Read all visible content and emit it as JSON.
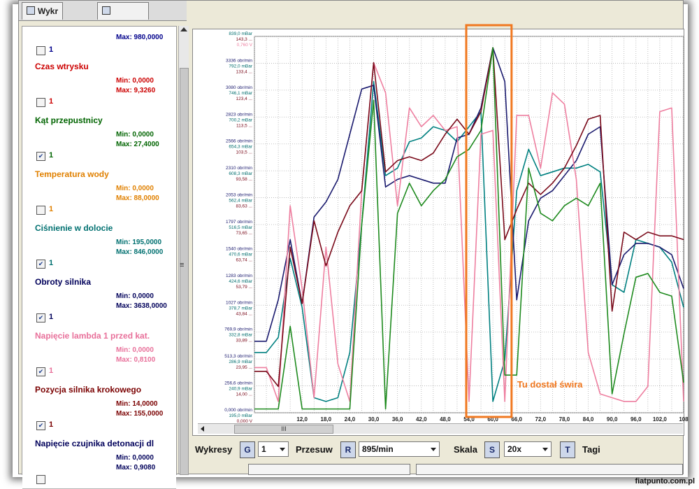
{
  "tabs": [
    {
      "label": "Wykr"
    },
    {
      "label": ""
    }
  ],
  "sensors": [
    {
      "name": "",
      "min": "",
      "max": "Max: 980,0000",
      "checked": false,
      "chk_label": "1",
      "color": "#00008b"
    },
    {
      "name": "Czas wtrysku",
      "min": "Min: 0,0000",
      "max": "Max: 9,3260",
      "checked": false,
      "chk_label": "1",
      "color": "#cc0000"
    },
    {
      "name": "Kąt przepustnicy",
      "min": "Min: 0,0000",
      "max": "Max: 27,4000",
      "checked": true,
      "chk_label": "1",
      "color": "#006400"
    },
    {
      "name": "Temperatura wody",
      "min": "Min: 0,0000",
      "max": "Max: 88,0000",
      "checked": false,
      "chk_label": "1",
      "color": "#e08000"
    },
    {
      "name": "Ciśnienie w dolocie",
      "min": "Min: 195,0000",
      "max": "Max: 846,0000",
      "checked": true,
      "chk_label": "1",
      "color": "#007070"
    },
    {
      "name": "Obroty silnika",
      "min": "Min: 0,0000",
      "max": "Max: 3638,0000",
      "checked": true,
      "chk_label": "1",
      "color": "#00005a"
    },
    {
      "name": "Napięcie lambda 1 przed kat.",
      "min": "Min: 0,0000",
      "max": "Max: 0,8100",
      "checked": true,
      "chk_label": "1",
      "color": "#e8709a"
    },
    {
      "name": "Pozycja silnika krokowego",
      "min": "Min: 14,0000",
      "max": "Max: 155,0000",
      "checked": true,
      "chk_label": "1",
      "color": "#7a0000"
    },
    {
      "name": "Napięcie czujnika detonacji dl",
      "min": "Min: 0,0000",
      "max": "Max: 0,9080",
      "checked": false,
      "chk_label": "",
      "color": "#00005a"
    }
  ],
  "toolbar": {
    "wykresy_label": "Wykresy",
    "g_btn": "G",
    "g_value": "1",
    "przesuw_label": "Przesuw",
    "r_btn": "R",
    "r_value": "895/min",
    "skala_label": "Skala",
    "s_btn": "S",
    "s_value": "20x",
    "t_btn": "T",
    "tagi_label": "Tagi"
  },
  "scrollbar_thumb": "III",
  "splitter_glyph": "≡",
  "watermark": "fiatpunto.com.pl",
  "colors": {
    "cisnienie": "#008080",
    "obroty": "#1a1a6e",
    "lambda": "#ee7fa0",
    "krokowy": "#7a0a1a",
    "przepustnica": "#1e8a1e",
    "highlight": "#f07820"
  },
  "chart_data": {
    "type": "line",
    "x": [
      0,
      3,
      6,
      9,
      12,
      15,
      18,
      21,
      24,
      27,
      30,
      33,
      36,
      39,
      42,
      45,
      48,
      51,
      54,
      57,
      60,
      63,
      66,
      69,
      72,
      75,
      78,
      81,
      84,
      87,
      90,
      93,
      96,
      99,
      102,
      105,
      108
    ],
    "x_ticks": [
      "12,0",
      "18,0",
      "24,0",
      "30,0",
      "36,0",
      "42,0",
      "48,0",
      "54,0",
      "60,0",
      "66,0",
      "72,0",
      "78,0",
      "84,0",
      "90,0",
      "96,0",
      "102,0",
      "108"
    ],
    "x_tick_values": [
      12,
      18,
      24,
      30,
      36,
      42,
      48,
      54,
      60,
      66,
      72,
      78,
      84,
      90,
      96,
      102,
      108
    ],
    "xlim": [
      0,
      108
    ],
    "ylim": [
      0,
      100
    ],
    "grid": true,
    "y_axis_labels": [
      [
        "839,0 mBar",
        "143,3 ...",
        "0,760 V"
      ],
      [
        "3336 obr/min",
        "792,0 mBar",
        "133,4 ..."
      ],
      [
        "3080 obr/min",
        "746,1 mBar",
        "123,4 ..."
      ],
      [
        "2823 obr/min",
        "700,2 mBar",
        "113,5 ..."
      ],
      [
        "2566 obr/min",
        "654,3 mBar",
        "103,5 ..."
      ],
      [
        "2310 obr/min",
        "608,3 mBar",
        "93,58 ..."
      ],
      [
        "2053 obr/min",
        "562,4 mBar",
        "83,63 ..."
      ],
      [
        "1797 obr/min",
        "516,5 mBar",
        "73,65 ..."
      ],
      [
        "1540 obr/min",
        "470,6 mBar",
        "63,74 ..."
      ],
      [
        "1283 obr/min",
        "424,6 mBar",
        "53,79 ..."
      ],
      [
        "1027 obr/min",
        "378,7 mBar",
        "43,84 ..."
      ],
      [
        "769,9 obr/min",
        "332,8 mBar",
        "33,89 ..."
      ],
      [
        "513,3 obr/min",
        "286,9 mBar",
        "23,95 ..."
      ],
      [
        "256,6 obr/min",
        "240,9 mBar",
        "14,00 ..."
      ],
      [
        "0,000 obr/min",
        "195,0 mBar",
        "0,000 V"
      ]
    ],
    "y_zero_extra": "0,000 °",
    "series": [
      {
        "name": "Ciśnienie w dolocie",
        "color": "#008080",
        "values": [
          16,
          16,
          20,
          41,
          28,
          4,
          3,
          4,
          16,
          50,
          88,
          63,
          65,
          72,
          73,
          76,
          75,
          72,
          76,
          80,
          3,
          14,
          59,
          70,
          63,
          64,
          65,
          65,
          66,
          64,
          34,
          32,
          46,
          45,
          44,
          40,
          28
        ]
      },
      {
        "name": "Obroty silnika",
        "color": "#1a1a6e",
        "values": [
          19,
          19,
          30,
          46,
          29,
          52,
          56,
          62,
          74,
          86,
          87,
          60,
          62,
          63,
          62,
          61,
          61,
          73,
          74,
          81,
          97,
          88,
          30,
          51,
          57,
          59,
          63,
          67,
          74,
          76,
          34,
          42,
          45,
          45,
          44,
          42,
          33
        ]
      },
      {
        "name": "Napięcie lambda 1 przed kat.",
        "color": "#ee7fa0",
        "values": [
          12,
          12,
          3,
          55,
          33,
          4,
          44,
          13,
          3,
          59,
          93,
          85,
          55,
          81,
          76,
          79,
          75,
          76,
          3,
          74,
          75,
          3,
          79,
          79,
          65,
          85,
          82,
          62,
          16,
          5,
          4,
          3,
          3,
          7,
          80,
          81,
          3
        ]
      },
      {
        "name": "Pozycja silnika krokowego",
        "color": "#7a0a1a",
        "values": [
          11,
          11,
          7,
          44,
          29,
          51,
          39,
          48,
          55,
          59,
          93,
          64,
          67,
          68,
          67,
          69,
          74,
          78,
          74,
          80,
          97,
          46,
          54,
          61,
          58,
          61,
          65,
          71,
          78,
          79,
          27,
          48,
          46,
          48,
          47,
          47,
          46
        ]
      },
      {
        "name": "Kąt przepustnicy",
        "color": "#1e8a1e",
        "values": [
          1,
          1,
          1,
          23,
          1,
          1,
          1,
          1,
          1,
          50,
          83,
          1,
          53,
          61,
          55,
          59,
          62,
          68,
          70,
          75,
          97,
          10,
          10,
          65,
          53,
          51,
          55,
          57,
          55,
          61,
          5,
          21,
          36,
          37,
          32,
          31,
          8
        ]
      }
    ],
    "annotation": {
      "text": "Tu dostał świra",
      "x_range": [
        54,
        64
      ],
      "color": "#f07820"
    }
  }
}
